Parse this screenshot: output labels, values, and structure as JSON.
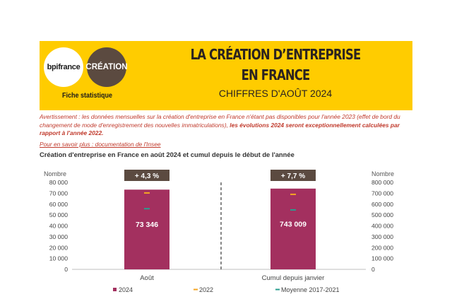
{
  "header": {
    "logo_left": "bpifrance",
    "logo_right": "CRÉATION",
    "fiche": "Fiche statistique",
    "title_line1": "LA CRÉATION D’ENTREPRISE",
    "title_line2": "EN FRANCE",
    "subtitle": "CHIFFRES D'AOÛT 2024"
  },
  "warning": {
    "text": "Avertissement : les données mensuelles sur la création d'entreprise en France n'étant pas disponibles pour l'année 2023 (effet de bord du changement de mode d'enregistrement des nouvelles immatriculations), ",
    "bold": "les évolutions 2024 seront exceptionnellement calculées par rapport à l'année 2022."
  },
  "link": "Pour en savoir plus : documentation de l'Insee",
  "chart_title": "Création d'entreprise en France en août 2024 et cumul depuis le début de l'année",
  "chart_data": {
    "type": "bar",
    "categories": [
      "Août",
      "Cumul depuis janvier"
    ],
    "axes": {
      "left": {
        "label": "Nombre",
        "ylim": [
          0,
          80000
        ],
        "ticks": [
          "0",
          "10 000",
          "20 000",
          "30 000",
          "40 000",
          "50 000",
          "60 000",
          "70 000",
          "80 000"
        ]
      },
      "right": {
        "label": "Nombre",
        "ylim": [
          0,
          800000
        ],
        "ticks": [
          "0",
          "100 000",
          "200 000",
          "300 000",
          "400 000",
          "500 000",
          "600 000",
          "700 000",
          "800 000"
        ]
      }
    },
    "bars": [
      {
        "category": "Août",
        "axis": "left",
        "value": 73346,
        "label": "73 346",
        "change": "+ 4,3 %"
      },
      {
        "category": "Cumul depuis janvier",
        "axis": "right",
        "value": 743009,
        "label": "743 009",
        "change": "+ 7,7 %"
      }
    ],
    "series": [
      {
        "name": "2024",
        "values": [
          73346,
          743009
        ],
        "color": "#a3305f"
      },
      {
        "name": "2022",
        "values": [
          70300,
          690000
        ],
        "color": "#f5a623"
      },
      {
        "name": "Moyenne 2017-2021",
        "values": [
          55800,
          547000
        ],
        "color": "#2a9d8f"
      }
    ],
    "grid": false,
    "legend": "bottom"
  },
  "colors": {
    "banner": "#ffcc00",
    "bar": "#a3305f",
    "badge": "#5b4a40",
    "accent_red": "#c0392b"
  }
}
